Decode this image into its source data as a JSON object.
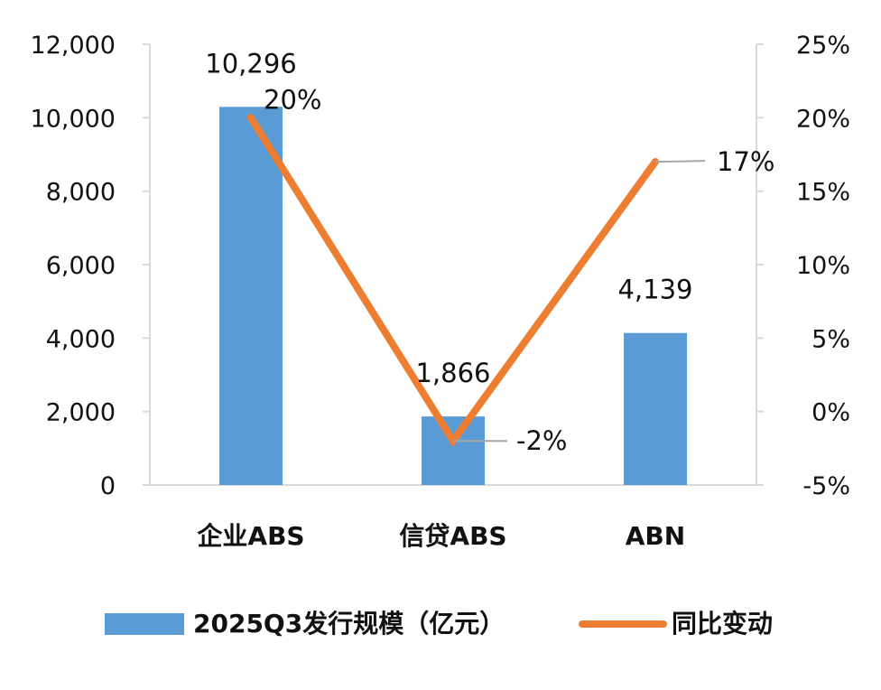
{
  "chart_data": {
    "type": "bar",
    "categories": [
      "企业ABS",
      "信贷ABS",
      "ABN"
    ],
    "series": [
      {
        "name": "2025Q3发行规模（亿元）",
        "type": "bar",
        "axis": "left",
        "values": [
          10296,
          1866,
          4139
        ],
        "labels": [
          "10,296",
          "1,866",
          "4,139"
        ],
        "color": "#5B9BD5"
      },
      {
        "name": "同比变动",
        "type": "line",
        "axis": "right",
        "values": [
          20,
          -2,
          17
        ],
        "labels": [
          "20%",
          "-2%",
          "17%"
        ],
        "color": "#ED7D31"
      }
    ],
    "y_left": {
      "range": [
        0,
        12000
      ],
      "ticks": [
        0,
        2000,
        4000,
        6000,
        8000,
        10000,
        12000
      ],
      "tick_labels": [
        "0",
        "2,000",
        "4,000",
        "6,000",
        "8,000",
        "10,000",
        "12,000"
      ]
    },
    "y_right": {
      "range": [
        -5,
        25
      ],
      "ticks": [
        -5,
        0,
        5,
        10,
        15,
        20,
        25
      ],
      "tick_labels": [
        "-5%",
        "0%",
        "5%",
        "10%",
        "15%",
        "20%",
        "25%"
      ]
    },
    "grid": false,
    "legend": "bottom",
    "axis_color": "#d9d9d9",
    "leader_color": "#a6a6a6"
  }
}
